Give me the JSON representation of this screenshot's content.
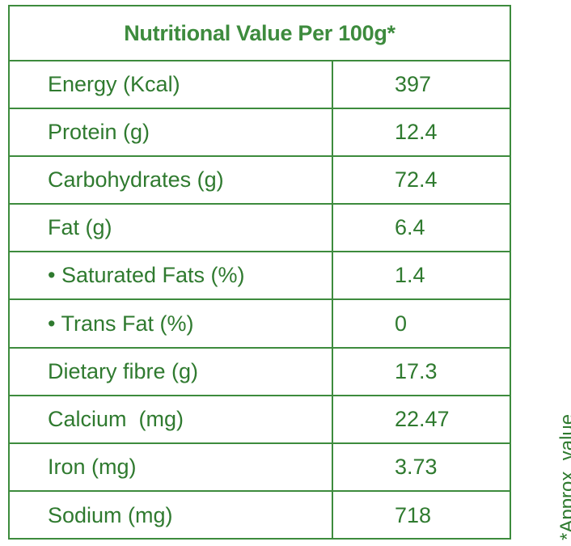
{
  "table": {
    "title": "Nutritional Value Per 100g*",
    "rows": [
      {
        "label": "Energy (Kcal)",
        "value": "397"
      },
      {
        "label": "Protein (g)",
        "value": "12.4"
      },
      {
        "label": "Carbohydrates (g)",
        "value": "72.4"
      },
      {
        "label": "Fat (g)",
        "value": "6.4"
      },
      {
        "label": "• Saturated Fats (%)",
        "value": "1.4"
      },
      {
        "label": "• Trans Fat (%)",
        "value": "0"
      },
      {
        "label": "Dietary fibre (g)",
        "value": "17.3"
      },
      {
        "label": "Calcium  (mg)",
        "value": "22.47"
      },
      {
        "label": "Iron (mg)",
        "value": "3.73"
      },
      {
        "label": "Sodium (mg)",
        "value": "718"
      }
    ]
  },
  "footnote": "*Approx. value",
  "colors": {
    "border": "#3d8b3d",
    "text": "#2f7a2f"
  }
}
